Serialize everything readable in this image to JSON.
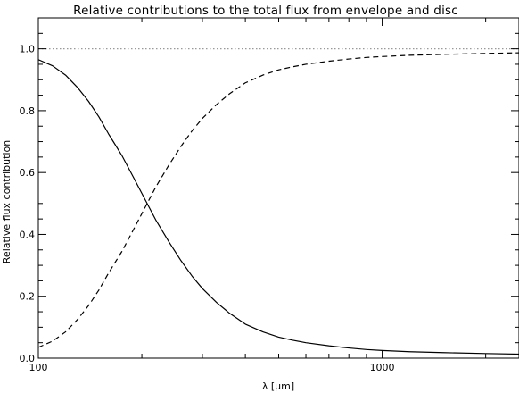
{
  "chart_data": {
    "type": "line",
    "title": "Relative contributions to the total flux from envelope and disc",
    "xlabel": "λ  [μm]",
    "ylabel": "Relative flux contribution",
    "x_scale": "log",
    "xlim": [
      100,
      2500
    ],
    "ylim": [
      0.0,
      1.1
    ],
    "x_ticks": [
      {
        "value": 100,
        "label": "100"
      },
      {
        "value": 1000,
        "label": "1000"
      }
    ],
    "x_minor_ticks": [
      200,
      300,
      400,
      500,
      600,
      700,
      800,
      900,
      2000
    ],
    "y_ticks": [
      {
        "value": 0.0,
        "label": "0.0"
      },
      {
        "value": 0.2,
        "label": "0.2"
      },
      {
        "value": 0.4,
        "label": "0.4"
      },
      {
        "value": 0.6,
        "label": "0.6"
      },
      {
        "value": 0.8,
        "label": "0.8"
      },
      {
        "value": 1.0,
        "label": "1.0"
      }
    ],
    "y_minor_ticks": [
      0.05,
      0.1,
      0.15,
      0.25,
      0.3,
      0.35,
      0.45,
      0.5,
      0.55,
      0.65,
      0.7,
      0.75,
      0.85,
      0.9,
      0.95,
      1.05
    ],
    "grid": false,
    "reference_line": {
      "y": 1.0,
      "style": "dotted",
      "color": "#999999"
    },
    "series": [
      {
        "style": "solid",
        "x": [
          100,
          110,
          120,
          130,
          140,
          150,
          160,
          175,
          190,
          205,
          220,
          240,
          260,
          280,
          300,
          330,
          360,
          400,
          450,
          500,
          550,
          600,
          700,
          800,
          900,
          1000,
          1200,
          1500,
          2000,
          2500
        ],
        "y": [
          0.965,
          0.945,
          0.915,
          0.875,
          0.83,
          0.78,
          0.725,
          0.655,
          0.58,
          0.51,
          0.445,
          0.375,
          0.315,
          0.265,
          0.225,
          0.18,
          0.145,
          0.11,
          0.085,
          0.068,
          0.058,
          0.05,
          0.04,
          0.033,
          0.028,
          0.025,
          0.021,
          0.018,
          0.015,
          0.013
        ]
      },
      {
        "style": "dashed",
        "x": [
          100,
          110,
          120,
          130,
          140,
          150,
          160,
          175,
          190,
          205,
          220,
          240,
          260,
          280,
          300,
          330,
          360,
          400,
          450,
          500,
          550,
          600,
          700,
          800,
          900,
          1000,
          1200,
          1500,
          2000,
          2500
        ],
        "y": [
          0.035,
          0.055,
          0.085,
          0.125,
          0.17,
          0.22,
          0.275,
          0.345,
          0.42,
          0.49,
          0.555,
          0.625,
          0.685,
          0.735,
          0.775,
          0.82,
          0.855,
          0.89,
          0.915,
          0.932,
          0.942,
          0.95,
          0.96,
          0.967,
          0.972,
          0.975,
          0.979,
          0.982,
          0.985,
          0.987
        ]
      }
    ]
  }
}
